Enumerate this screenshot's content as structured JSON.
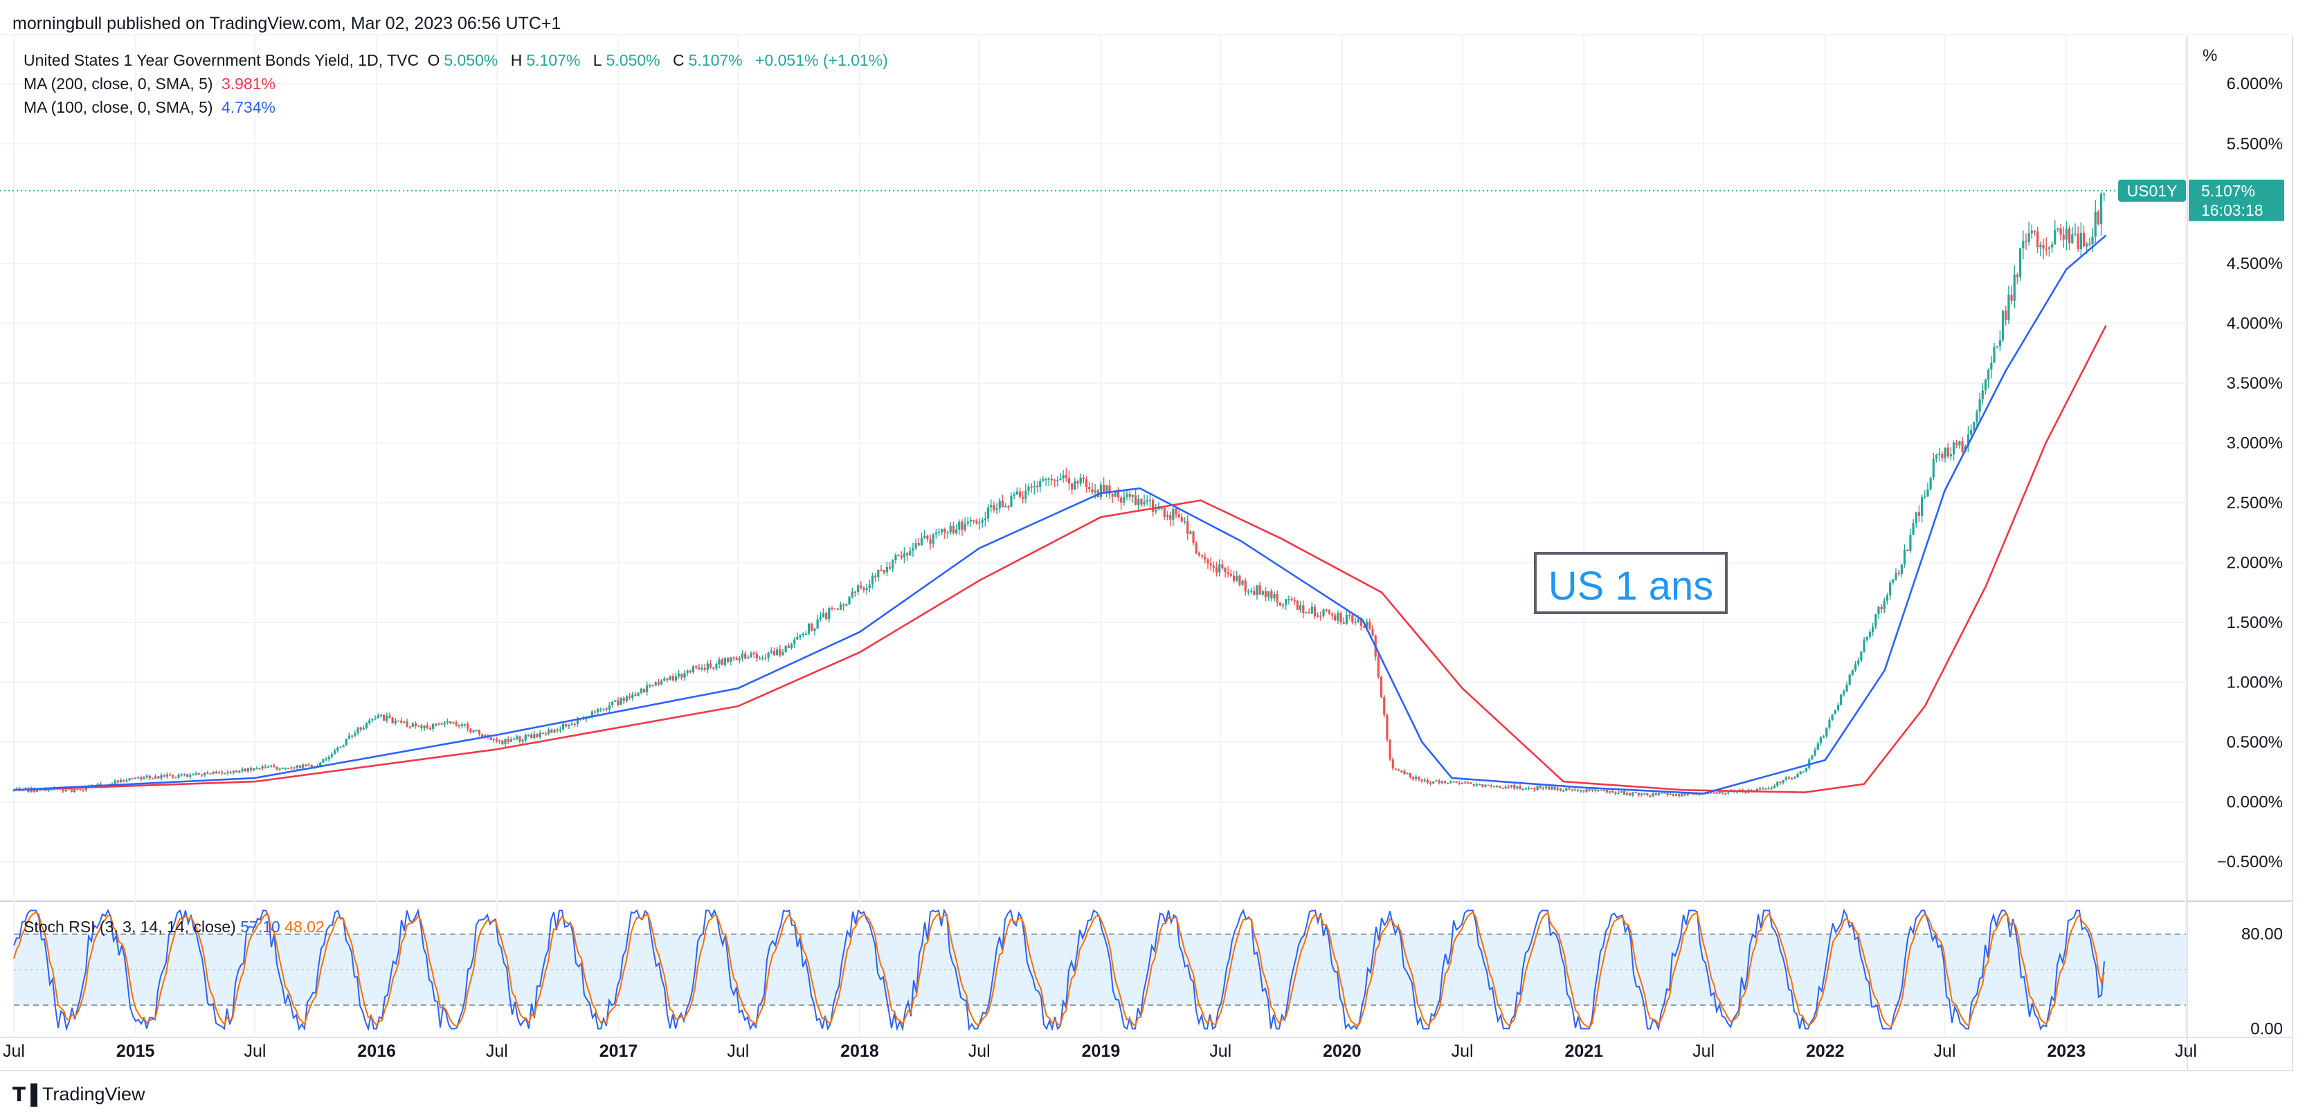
{
  "publisher_line": "morningbull published on TradingView.com, Mar 02, 2023 06:56 UTC+1",
  "brand": "TradingView",
  "legend": {
    "title": "United States 1 Year Government Bonds Yield, 1D, TVC",
    "ohlc": [
      {
        "label": "O",
        "value": "5.050%"
      },
      {
        "label": "H",
        "value": "5.107%"
      },
      {
        "label": "L",
        "value": "5.050%"
      },
      {
        "label": "C",
        "value": "5.107%"
      }
    ],
    "change": "+0.051% (+1.01%)",
    "ma200": {
      "label": "MA (200, close, 0, SMA, 5)",
      "value": "3.981%"
    },
    "ma100": {
      "label": "MA (100, close, 0, SMA, 5)",
      "value": "4.734%"
    }
  },
  "annotation_text": "US 1 ans",
  "price_label": {
    "symbol": "US01Y",
    "value": "5.107%",
    "countdown": "16:03:18"
  },
  "stoch": {
    "label": "Stoch RSI (3, 3, 14, 14, close)",
    "k": "57.10",
    "d": "48.02"
  },
  "colors": {
    "up": "#26a69a",
    "down": "#ef5350",
    "ma200": "#f23645",
    "ma100": "#2962ff",
    "stoch_k": "#2962ff",
    "stoch_d": "#ff6d00",
    "stoch_band": "#e3f2fd",
    "annotation": "#2196f3",
    "last_price_bg": "#26a69a"
  },
  "chart_data": [
    {
      "type": "line",
      "title": "United States 1 Year Government Bonds Yield, 1D, TVC",
      "ylabel": "%",
      "y_unit": "%",
      "ylim": [
        -0.8,
        6.4
      ],
      "xlim": [
        "2014-07-01",
        "2023-07-01"
      ],
      "x_ticks": [
        {
          "date": "2014-07-01",
          "label": "Jul"
        },
        {
          "date": "2015-01-01",
          "label": "2015"
        },
        {
          "date": "2015-07-01",
          "label": "Jul"
        },
        {
          "date": "2016-01-01",
          "label": "2016"
        },
        {
          "date": "2016-07-01",
          "label": "Jul"
        },
        {
          "date": "2017-01-01",
          "label": "2017"
        },
        {
          "date": "2017-07-01",
          "label": "Jul"
        },
        {
          "date": "2018-01-01",
          "label": "2018"
        },
        {
          "date": "2018-07-01",
          "label": "Jul"
        },
        {
          "date": "2019-01-01",
          "label": "2019"
        },
        {
          "date": "2019-07-01",
          "label": "Jul"
        },
        {
          "date": "2020-01-01",
          "label": "2020"
        },
        {
          "date": "2020-07-01",
          "label": "Jul"
        },
        {
          "date": "2021-01-01",
          "label": "2021"
        },
        {
          "date": "2021-07-01",
          "label": "Jul"
        },
        {
          "date": "2022-01-01",
          "label": "2022"
        },
        {
          "date": "2022-07-01",
          "label": "Jul"
        },
        {
          "date": "2023-01-01",
          "label": "2023"
        },
        {
          "date": "2023-07-01",
          "label": "Jul"
        }
      ],
      "y_ticks": [
        {
          "value": 6.0,
          "label": "6.000%"
        },
        {
          "value": 5.5,
          "label": "5.500%"
        },
        {
          "value": 4.5,
          "label": "4.500%"
        },
        {
          "value": 4.0,
          "label": "4.000%"
        },
        {
          "value": 3.5,
          "label": "3.500%"
        },
        {
          "value": 3.0,
          "label": "3.000%"
        },
        {
          "value": 2.5,
          "label": "2.500%"
        },
        {
          "value": 2.0,
          "label": "2.000%"
        },
        {
          "value": 1.5,
          "label": "1.500%"
        },
        {
          "value": 1.0,
          "label": "1.000%"
        },
        {
          "value": 0.5,
          "label": "0.500%"
        },
        {
          "value": 0.0,
          "label": "0.000%"
        },
        {
          "value": -0.5,
          "label": "−0.500%"
        }
      ],
      "last_value": 5.107,
      "series": [
        {
          "name": "United States 1 Year Government Bonds Yield",
          "style": "candles",
          "points": [
            [
              "2014-07-01",
              0.1
            ],
            [
              "2014-10-01",
              0.1
            ],
            [
              "2015-01-01",
              0.2
            ],
            [
              "2015-04-01",
              0.23
            ],
            [
              "2015-07-01",
              0.28
            ],
            [
              "2015-10-01",
              0.3
            ],
            [
              "2015-12-15",
              0.65
            ],
            [
              "2016-01-01",
              0.72
            ],
            [
              "2016-03-01",
              0.62
            ],
            [
              "2016-05-01",
              0.66
            ],
            [
              "2016-07-01",
              0.5
            ],
            [
              "2016-09-01",
              0.55
            ],
            [
              "2016-11-01",
              0.68
            ],
            [
              "2017-01-01",
              0.84
            ],
            [
              "2017-03-01",
              1.0
            ],
            [
              "2017-05-01",
              1.12
            ],
            [
              "2017-07-01",
              1.2
            ],
            [
              "2017-09-01",
              1.25
            ],
            [
              "2017-11-01",
              1.52
            ],
            [
              "2018-01-01",
              1.78
            ],
            [
              "2018-03-01",
              2.05
            ],
            [
              "2018-05-01",
              2.24
            ],
            [
              "2018-07-01",
              2.38
            ],
            [
              "2018-09-01",
              2.55
            ],
            [
              "2018-11-01",
              2.7
            ],
            [
              "2019-01-01",
              2.6
            ],
            [
              "2019-03-01",
              2.5
            ],
            [
              "2019-05-01",
              2.38
            ],
            [
              "2019-06-01",
              2.05
            ],
            [
              "2019-08-01",
              1.82
            ],
            [
              "2019-10-01",
              1.68
            ],
            [
              "2019-12-01",
              1.57
            ],
            [
              "2020-02-15",
              1.48
            ],
            [
              "2020-03-15",
              0.3
            ],
            [
              "2020-05-01",
              0.17
            ],
            [
              "2020-07-01",
              0.15
            ],
            [
              "2020-10-01",
              0.12
            ],
            [
              "2021-01-01",
              0.1
            ],
            [
              "2021-04-01",
              0.06
            ],
            [
              "2021-07-01",
              0.07
            ],
            [
              "2021-10-01",
              0.1
            ],
            [
              "2021-12-01",
              0.26
            ],
            [
              "2022-01-01",
              0.6
            ],
            [
              "2022-02-01",
              0.95
            ],
            [
              "2022-03-15",
              1.5
            ],
            [
              "2022-05-01",
              2.05
            ],
            [
              "2022-06-15",
              2.85
            ],
            [
              "2022-08-01",
              3.0
            ],
            [
              "2022-09-01",
              3.5
            ],
            [
              "2022-10-01",
              4.1
            ],
            [
              "2022-11-01",
              4.7
            ],
            [
              "2022-12-01",
              4.72
            ],
            [
              "2023-01-15",
              4.7
            ],
            [
              "2023-02-01",
              4.65
            ],
            [
              "2023-03-02",
              5.107
            ]
          ]
        },
        {
          "name": "MA (200, close, 0, SMA, 5)",
          "points": [
            [
              "2014-07-01",
              0.1
            ],
            [
              "2015-07-01",
              0.17
            ],
            [
              "2016-07-01",
              0.44
            ],
            [
              "2017-07-01",
              0.8
            ],
            [
              "2018-01-01",
              1.25
            ],
            [
              "2018-07-01",
              1.85
            ],
            [
              "2019-01-01",
              2.38
            ],
            [
              "2019-06-01",
              2.52
            ],
            [
              "2019-10-01",
              2.2
            ],
            [
              "2020-03-01",
              1.75
            ],
            [
              "2020-07-01",
              0.95
            ],
            [
              "2020-12-01",
              0.17
            ],
            [
              "2021-06-01",
              0.1
            ],
            [
              "2021-12-01",
              0.08
            ],
            [
              "2022-03-01",
              0.15
            ],
            [
              "2022-06-01",
              0.8
            ],
            [
              "2022-09-01",
              1.8
            ],
            [
              "2022-12-01",
              3.0
            ],
            [
              "2023-03-02",
              3.981
            ]
          ]
        },
        {
          "name": "MA (100, close, 0, SMA, 5)",
          "points": [
            [
              "2014-07-01",
              0.1
            ],
            [
              "2015-07-01",
              0.2
            ],
            [
              "2016-07-01",
              0.56
            ],
            [
              "2017-07-01",
              0.95
            ],
            [
              "2018-01-01",
              1.42
            ],
            [
              "2018-07-01",
              2.12
            ],
            [
              "2019-01-01",
              2.58
            ],
            [
              "2019-03-01",
              2.62
            ],
            [
              "2019-08-01",
              2.18
            ],
            [
              "2020-02-01",
              1.52
            ],
            [
              "2020-05-01",
              0.5
            ],
            [
              "2020-06-15",
              0.2
            ],
            [
              "2021-01-01",
              0.12
            ],
            [
              "2021-07-01",
              0.07
            ],
            [
              "2022-01-01",
              0.35
            ],
            [
              "2022-04-01",
              1.1
            ],
            [
              "2022-07-01",
              2.6
            ],
            [
              "2022-10-01",
              3.6
            ],
            [
              "2023-01-01",
              4.45
            ],
            [
              "2023-03-02",
              4.734
            ]
          ]
        }
      ]
    },
    {
      "type": "line",
      "title": "Stoch RSI (3, 3, 14, 14, close)",
      "ylim": [
        -5,
        105
      ],
      "xlim": [
        "2014-07-01",
        "2023-07-01"
      ],
      "y_ticks": [
        {
          "value": 80,
          "label": "80.00"
        },
        {
          "value": 0,
          "label": "0.00"
        }
      ],
      "bands": {
        "upper": 80,
        "middle": 50,
        "lower": 20
      },
      "series": [
        {
          "name": "K",
          "last_value": 57.1
        },
        {
          "name": "D",
          "last_value": 48.02
        }
      ]
    }
  ]
}
